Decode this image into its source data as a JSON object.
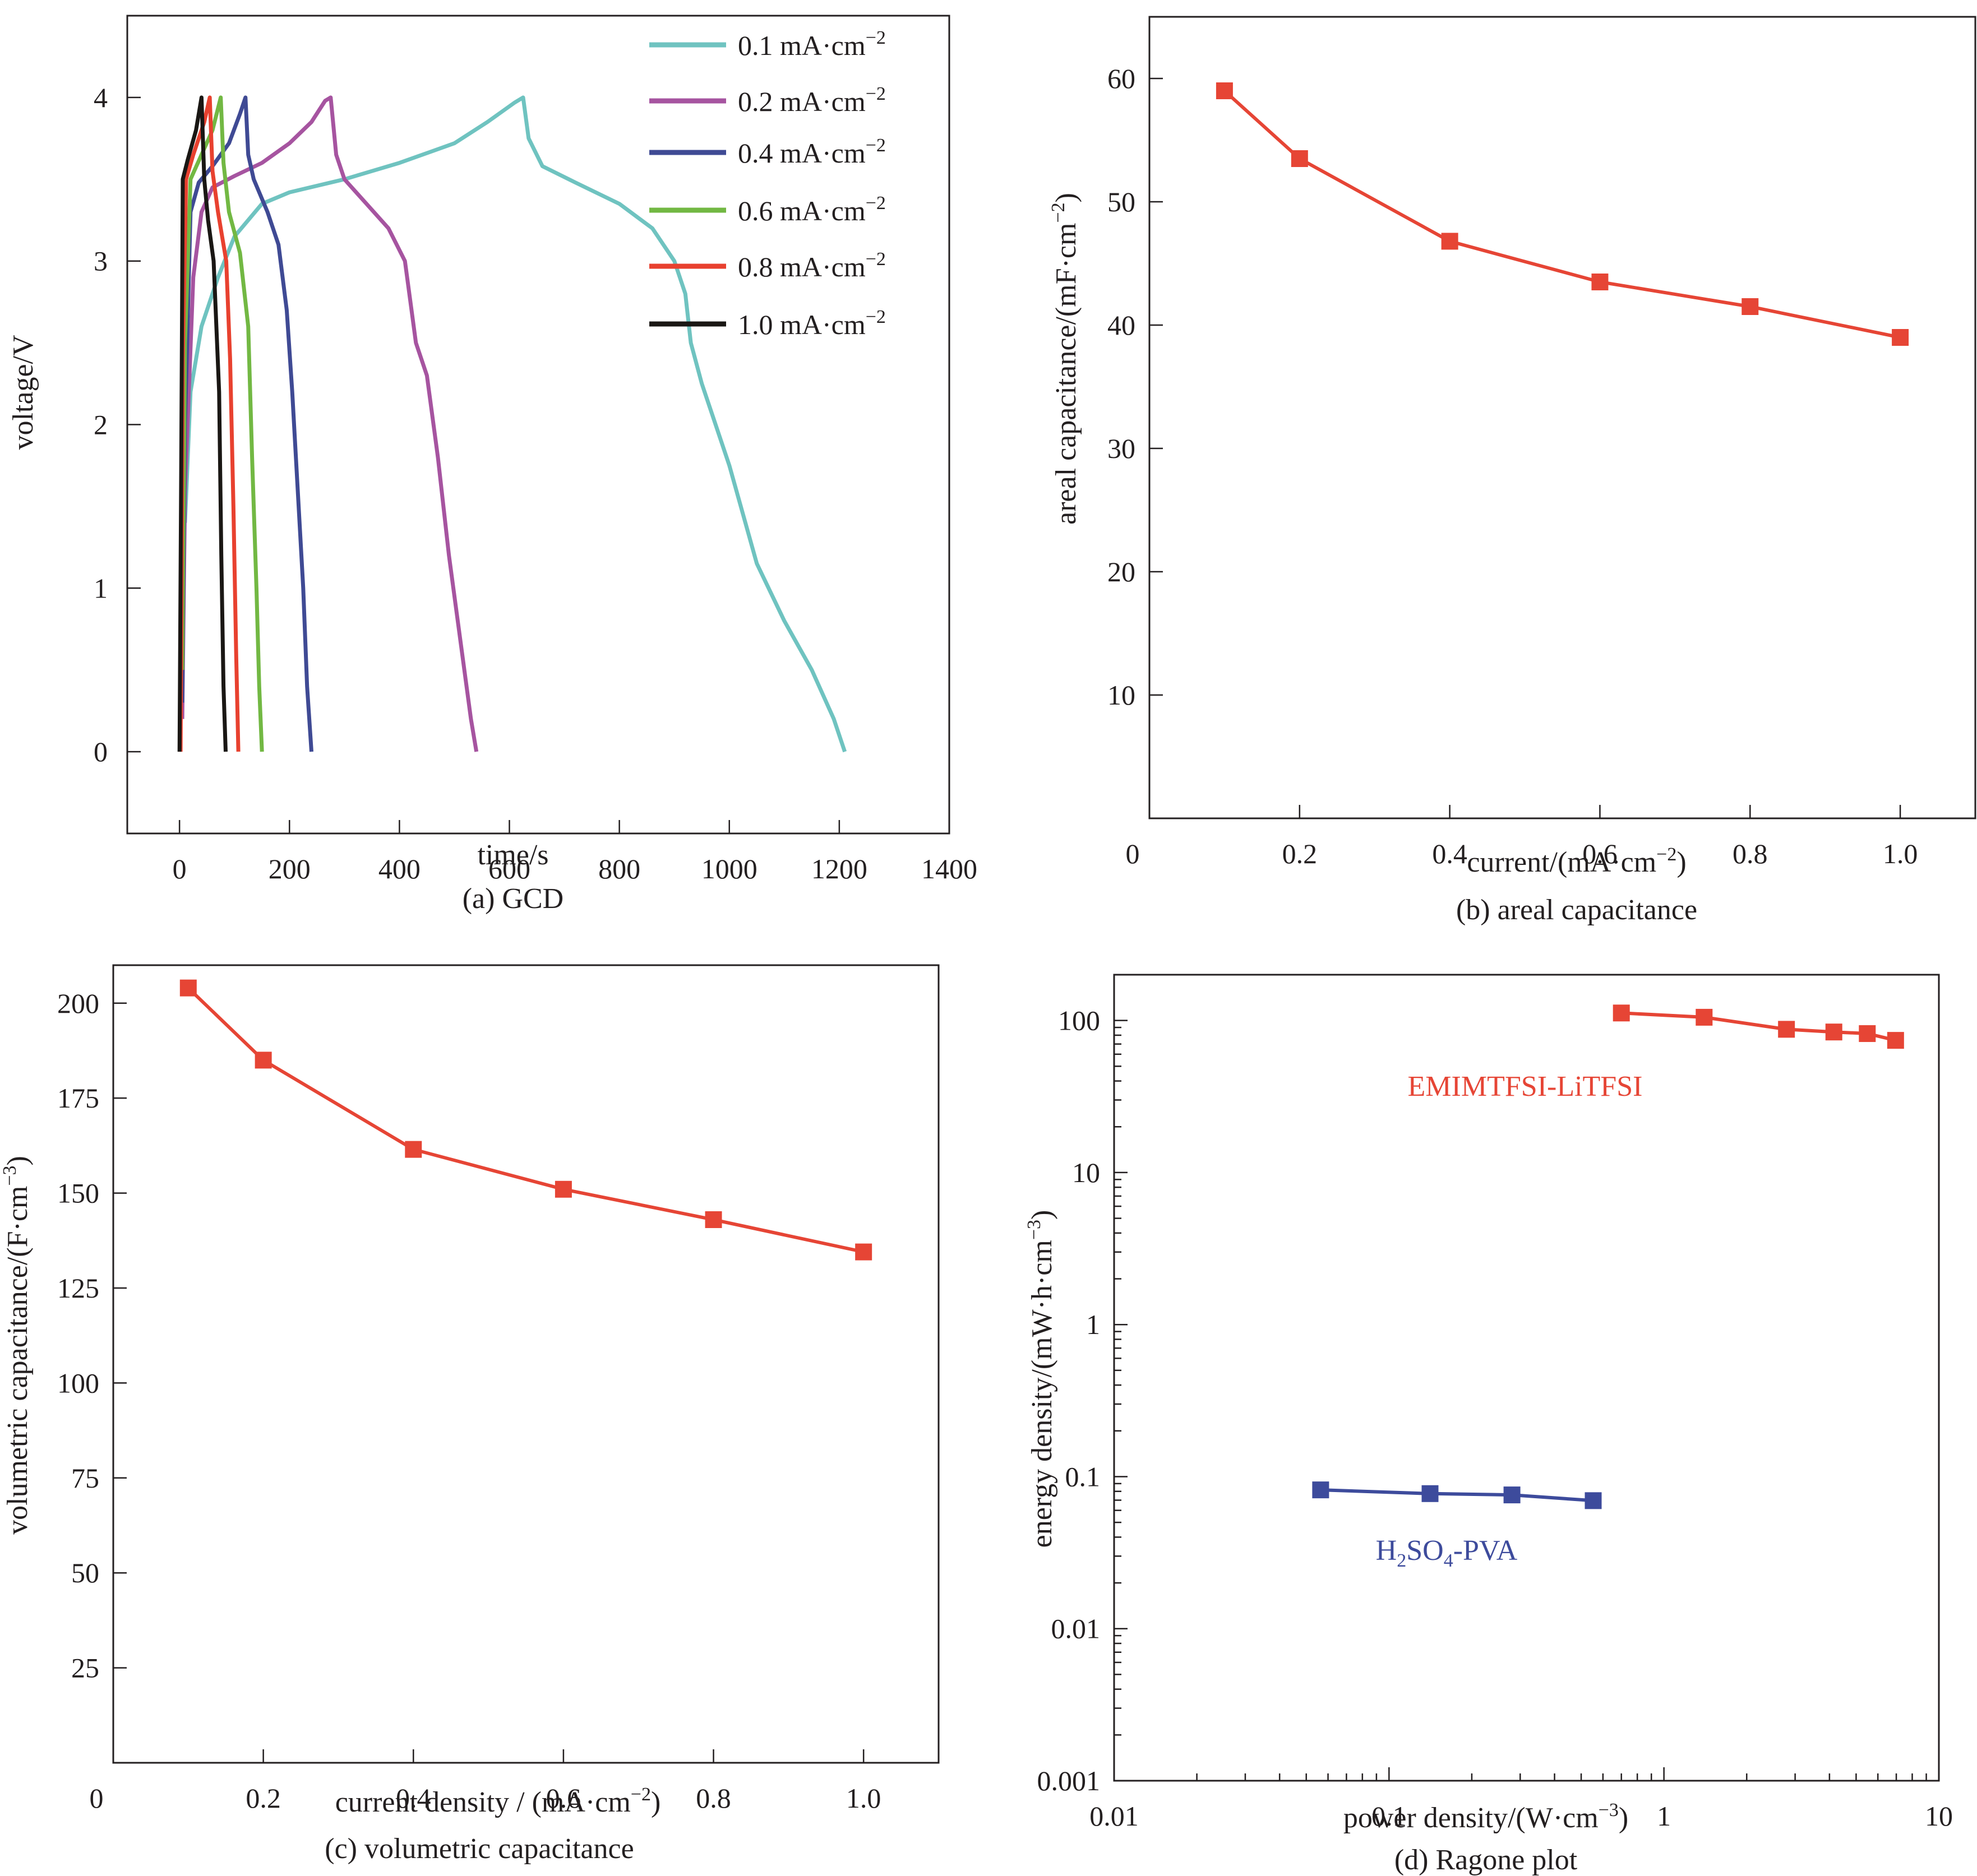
{
  "chart_data": [
    {
      "id": "a",
      "type": "line",
      "caption": "(a) GCD",
      "xlabel": "time/s",
      "ylabel": "voltage/V",
      "xlim": [
        -95,
        1400
      ],
      "ylim": [
        -0.5,
        4.5
      ],
      "xticks": [
        0,
        200,
        400,
        600,
        800,
        1000,
        1200,
        1400
      ],
      "yticks": [
        0,
        1,
        2,
        3,
        4
      ],
      "grid": false,
      "legend_position": "top-right",
      "series": [
        {
          "name": "0.1 mA·cm⁻²",
          "label_main": "0.1 mA·cm",
          "label_sup": "−2",
          "color": "#6fc3c0",
          "x": [
            10,
            20,
            40,
            70,
            100,
            150,
            200,
            300,
            400,
            500,
            560,
            610,
            625,
            635,
            660,
            720,
            800,
            860,
            900,
            920,
            930,
            950,
            1000,
            1050,
            1100,
            1150,
            1190,
            1210
          ],
          "y": [
            1.4,
            2.2,
            2.6,
            2.9,
            3.15,
            3.35,
            3.42,
            3.5,
            3.6,
            3.72,
            3.85,
            3.97,
            4.0,
            3.75,
            3.58,
            3.48,
            3.35,
            3.2,
            3.0,
            2.8,
            2.5,
            2.25,
            1.75,
            1.15,
            0.8,
            0.5,
            0.2,
            0.0
          ]
        },
        {
          "name": "0.2 mA·cm⁻²",
          "label_main": "0.2 mA·cm",
          "label_sup": "−2",
          "color": "#a654a0",
          "x": [
            5,
            10,
            25,
            40,
            60,
            100,
            150,
            200,
            240,
            265,
            275,
            285,
            300,
            340,
            380,
            410,
            430,
            450,
            470,
            490,
            510,
            530,
            540
          ],
          "y": [
            0.2,
            1.6,
            2.9,
            3.3,
            3.45,
            3.52,
            3.6,
            3.72,
            3.85,
            3.98,
            4.0,
            3.65,
            3.5,
            3.35,
            3.2,
            3.0,
            2.5,
            2.3,
            1.8,
            1.2,
            0.7,
            0.2,
            0.0
          ]
        },
        {
          "name": "0.4 mA·cm⁻²",
          "label_main": "0.4 mA·cm",
          "label_sup": "−2",
          "color": "#3f4a94",
          "x": [
            5,
            10,
            20,
            35,
            60,
            90,
            110,
            120,
            125,
            135,
            160,
            180,
            195,
            205,
            215,
            225,
            232,
            240
          ],
          "y": [
            0.3,
            2.0,
            3.3,
            3.48,
            3.58,
            3.72,
            3.9,
            4.0,
            3.65,
            3.5,
            3.3,
            3.1,
            2.7,
            2.2,
            1.6,
            1.0,
            0.4,
            0.0
          ]
        },
        {
          "name": "0.6 mA·cm⁻²",
          "label_main": "0.6 mA·cm",
          "label_sup": "−2",
          "color": "#72b843",
          "x": [
            5,
            10,
            20,
            40,
            60,
            75,
            80,
            90,
            110,
            125,
            132,
            140,
            145,
            150
          ],
          "y": [
            0.5,
            2.5,
            3.5,
            3.65,
            3.8,
            4.0,
            3.6,
            3.3,
            3.05,
            2.6,
            1.8,
            1.0,
            0.4,
            0.0
          ]
        },
        {
          "name": "0.8 mA·cm⁻²",
          "label_main": "0.8 mA·cm",
          "label_sup": "−2",
          "color": "#e8412f",
          "x": [
            2,
            6,
            12,
            25,
            45,
            55,
            60,
            70,
            85,
            92,
            98,
            103,
            107
          ],
          "y": [
            0.0,
            2.4,
            3.5,
            3.65,
            3.85,
            4.0,
            3.55,
            3.3,
            3.0,
            2.4,
            1.5,
            0.6,
            0.0
          ]
        },
        {
          "name": "1.0 mA·cm⁻²",
          "label_main": "1.0 mA·cm",
          "label_sup": "−2",
          "color": "#1a1714",
          "x": [
            0,
            3,
            6,
            15,
            30,
            40,
            45,
            52,
            62,
            72,
            76,
            80,
            84
          ],
          "y": [
            0.0,
            1.7,
            3.5,
            3.62,
            3.8,
            4.0,
            3.5,
            3.25,
            3.0,
            2.2,
            1.2,
            0.4,
            0.0
          ]
        }
      ]
    },
    {
      "id": "b",
      "type": "line",
      "caption": "(b)  areal capacitance",
      "xlabel_main": "current/(mA·cm",
      "xlabel_sup": "−2",
      "xlabel_end": ")",
      "ylabel_main": "areal capacitance/(mF·cm",
      "ylabel_sup": "−2",
      "ylabel_end": ")",
      "xlim": [
        0,
        1.1
      ],
      "ylim": [
        0,
        65
      ],
      "xticks": [
        0.2,
        0.4,
        0.6,
        0.8,
        1.0
      ],
      "xtick_labels": [
        "0.2",
        "0.4",
        "0.6",
        "0.8",
        "1.0"
      ],
      "origin_label": "0",
      "yticks": [
        10,
        20,
        30,
        40,
        50,
        60
      ],
      "grid": false,
      "series": [
        {
          "name": "areal capacitance",
          "color": "#e64535",
          "marker": "square",
          "x": [
            0.1,
            0.2,
            0.4,
            0.6,
            0.8,
            1.0
          ],
          "y": [
            59.0,
            53.5,
            46.8,
            43.5,
            41.5,
            39.0
          ]
        }
      ]
    },
    {
      "id": "c",
      "type": "line",
      "caption": "(c) volumetric capacitance",
      "xlabel_main": "current density / (mA·cm",
      "xlabel_sup": "−2",
      "xlabel_end": ")",
      "ylabel_main": "volumetric capacitance/(F·cm",
      "ylabel_sup": "−3",
      "ylabel_end": ")",
      "xlim": [
        0,
        1.1
      ],
      "ylim": [
        0,
        210
      ],
      "xticks": [
        0.2,
        0.4,
        0.6,
        0.8,
        1.0
      ],
      "xtick_labels": [
        "0.2",
        "0.4",
        "0.6",
        "0.8",
        "1.0"
      ],
      "origin_label": "0",
      "yticks": [
        25,
        50,
        75,
        100,
        125,
        150,
        175,
        200
      ],
      "grid": false,
      "series": [
        {
          "name": "volumetric capacitance",
          "color": "#e64535",
          "marker": "square",
          "x": [
            0.1,
            0.2,
            0.4,
            0.6,
            0.8,
            1.0
          ],
          "y": [
            204,
            185,
            161.5,
            151,
            143,
            134.5
          ]
        }
      ]
    },
    {
      "id": "d",
      "type": "scatter",
      "scale": "log-log",
      "caption": "(d)  Ragone plot",
      "xlabel_main": "power density/(W·cm",
      "xlabel_sup": "−3",
      "xlabel_end": ")",
      "ylabel_main": "energy  density/(mW·h·cm",
      "ylabel_sup": "−3",
      "ylabel_end": ")",
      "xlim": [
        0.01,
        10
      ],
      "ylim": [
        0.001,
        200
      ],
      "xticks": [
        0.01,
        0.1,
        1,
        10
      ],
      "xtick_labels": [
        "0.01",
        "0.1",
        "1",
        "10"
      ],
      "yticks": [
        0.001,
        0.01,
        0.1,
        1,
        10,
        100
      ],
      "ytick_labels": [
        "0.001",
        "0.01",
        "0.1",
        "1",
        "10",
        "100"
      ],
      "grid": false,
      "series": [
        {
          "name": "EMIMTFSI-LiTFSI",
          "label": "EMIMTFSI-LiTFSI",
          "color": "#e64535",
          "marker": "square",
          "x": [
            0.7,
            1.4,
            2.79,
            4.15,
            5.49,
            6.96
          ],
          "y": [
            112,
            105,
            87.5,
            84,
            82,
            74
          ]
        },
        {
          "name": "H2SO4-PVA",
          "label_parts": [
            "H",
            "2",
            "SO",
            "4",
            "-PVA"
          ],
          "color": "#3d4b9c",
          "marker": "square",
          "x": [
            0.0564,
            0.141,
            0.28,
            0.553
          ],
          "y": [
            0.0818,
            0.0773,
            0.0758,
            0.0695
          ]
        }
      ]
    }
  ]
}
